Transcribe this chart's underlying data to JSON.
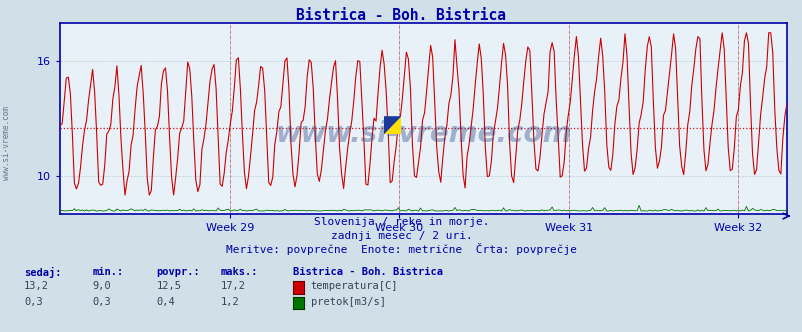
{
  "title": "Bistrica - Boh. Bistrica",
  "bg_color": "#d0dfe8",
  "plot_bg_color": "#e8f0f8",
  "grid_color": "#b0c8d8",
  "temp_color": "#cc0000",
  "flow_color": "#007700",
  "avg_line_color": "#cc0000",
  "axis_color": "#0000aa",
  "tick_color": "#0000aa",
  "x_tick_labels": [
    "Week 29",
    "Week 30",
    "Week 31",
    "Week 32"
  ],
  "ylim_temp_min": 8.0,
  "ylim_temp_max": 18.0,
  "yticks_temp": [
    10,
    16
  ],
  "avg_temp": 12.5,
  "subtitle1": "Slovenija / reke in morje.",
  "subtitle2": "zadnji mesec / 2 uri.",
  "subtitle3": "Meritve: povprečne  Enote: metrične  Črta: povprečje",
  "legend_title": "Bistrica - Boh. Bistrica",
  "stat_headers": [
    "sedaj:",
    "min.:",
    "povpr.:",
    "maks.:"
  ],
  "temp_stats": [
    "13,2",
    "9,0",
    "12,5",
    "17,2"
  ],
  "flow_stats": [
    "0,3",
    "0,3",
    "0,4",
    "1,2"
  ],
  "label_temp": "temperatura[C]",
  "label_flow": "pretok[m3/s]",
  "watermark": "www.si-vreme.com",
  "n_points": 360
}
